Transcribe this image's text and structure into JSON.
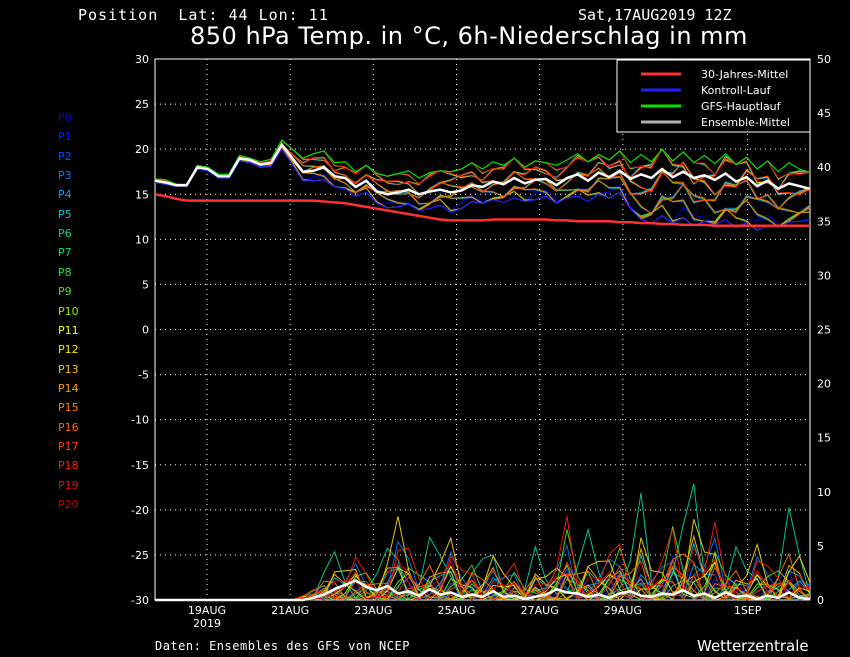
{
  "header": {
    "position_label": "Position",
    "lat_label": "Lat:",
    "lat": "44",
    "lon_label": "Lon:",
    "lon": "11",
    "datetime": "Sat,17AUG2019 12Z",
    "title": "850 hPa Temp. in °C, 6h-Niederschlag in mm"
  },
  "footer": {
    "source": "Daten: Ensembles des GFS von NCEP",
    "brand": "Wetterzentrale"
  },
  "members": [
    {
      "label": "P0",
      "color": "#0000ff"
    },
    {
      "label": "P1",
      "color": "#0028ff"
    },
    {
      "label": "P2",
      "color": "#0050ff"
    },
    {
      "label": "P3",
      "color": "#0078ff"
    },
    {
      "label": "P4",
      "color": "#00a0ff"
    },
    {
      "label": "P5",
      "color": "#00c8e0"
    },
    {
      "label": "P6",
      "color": "#00d8a0"
    },
    {
      "label": "P7",
      "color": "#00e070"
    },
    {
      "label": "P8",
      "color": "#20e040"
    },
    {
      "label": "P9",
      "color": "#50e020"
    },
    {
      "label": "P10",
      "color": "#90f000"
    },
    {
      "label": "P11",
      "color": "#ffff00"
    },
    {
      "label": "P12",
      "color": "#ffe000"
    },
    {
      "label": "P13",
      "color": "#ffc000"
    },
    {
      "label": "P14",
      "color": "#ffa000"
    },
    {
      "label": "P15",
      "color": "#ff8000"
    },
    {
      "label": "P16",
      "color": "#ff6000"
    },
    {
      "label": "P17",
      "color": "#ff4000"
    },
    {
      "label": "P18",
      "color": "#ff2000"
    },
    {
      "label": "P19",
      "color": "#e01000"
    },
    {
      "label": "P20",
      "color": "#c00000"
    }
  ],
  "chart_data": {
    "type": "line",
    "title": "850 hPa Temp. in °C, 6h-Niederschlag in mm",
    "x_ticks": [
      "19AUG",
      "21AUG",
      "23AUG",
      "25AUG",
      "27AUG",
      "29AUG",
      "1SEP"
    ],
    "x_tick_sub": [
      "2019",
      "",
      "",
      "",
      "",
      "",
      ""
    ],
    "x_range": [
      "2019-08-17 18Z",
      "2019-09-02 12Z"
    ],
    "y_left": {
      "ticks": [
        30,
        25,
        20,
        15,
        10,
        5,
        0,
        -5,
        -10,
        -15,
        -20,
        -25,
        -30
      ],
      "range": [
        -30,
        30
      ],
      "unit": "°C"
    },
    "y_right": {
      "ticks": [
        50,
        45,
        40,
        35,
        30,
        25,
        20,
        15,
        10,
        5,
        0
      ],
      "range": [
        0,
        50
      ],
      "unit": "mm"
    },
    "grid": true,
    "legend": {
      "position": "top-right",
      "entries": [
        {
          "name": "30-Jahres-Mittel",
          "color": "#ff3030"
        },
        {
          "name": "Kontroll-Lauf",
          "color": "#2020ff"
        },
        {
          "name": "GFS-Hauptlauf",
          "color": "#00e000"
        },
        {
          "name": "Ensemble-Mittel",
          "color": "#b0b0b0"
        }
      ]
    },
    "climatology_temp": [
      15.0,
      14.8,
      14.5,
      14.3,
      14.3,
      14.3,
      14.3,
      14.3,
      14.3,
      14.3,
      14.3,
      14.3,
      14.3,
      14.3,
      14.3,
      14.3,
      14.2,
      14.1,
      14.0,
      13.8,
      13.6,
      13.4,
      13.2,
      13.0,
      12.8,
      12.6,
      12.4,
      12.2,
      12.1,
      12.1,
      12.1,
      12.1,
      12.2,
      12.2,
      12.2,
      12.2,
      12.2,
      12.2,
      12.1,
      12.1,
      12.0,
      12.0,
      12.0,
      12.0,
      11.9,
      11.9,
      11.8,
      11.8,
      11.7,
      11.7,
      11.6,
      11.6,
      11.6,
      11.5,
      11.5,
      11.5,
      11.5,
      11.5,
      11.5,
      11.5,
      11.5,
      11.5,
      11.5
    ],
    "ensemble_mean_temp": [
      16.5,
      16.3,
      16.0,
      16.0,
      18.0,
      17.8,
      17.0,
      17.0,
      19.0,
      18.8,
      18.3,
      18.5,
      20.5,
      19.0,
      17.5,
      17.6,
      18.0,
      17.0,
      16.8,
      15.8,
      16.5,
      15.3,
      15.0,
      15.2,
      15.5,
      15.0,
      15.3,
      15.5,
      15.2,
      15.4,
      16.0,
      15.8,
      16.4,
      16.1,
      16.8,
      16.2,
      16.6,
      16.7,
      16.0,
      16.8,
      17.2,
      16.5,
      17.4,
      16.9,
      17.6,
      16.7,
      17.2,
      16.8,
      17.8,
      16.9,
      17.5,
      16.8,
      17.1,
      16.6,
      17.3,
      16.4,
      16.9,
      15.9,
      16.5,
      15.6,
      16.2,
      15.9,
      15.6
    ],
    "spread_upper_temp": [
      16.7,
      16.6,
      16.1,
      16.1,
      18.2,
      18.0,
      17.2,
      17.2,
      19.3,
      19.0,
      18.6,
      18.9,
      21.0,
      20.0,
      19.0,
      19.5,
      19.8,
      18.5,
      18.6,
      17.5,
      18.2,
      17.3,
      17.0,
      17.3,
      17.6,
      16.8,
      17.4,
      17.6,
      17.5,
      17.8,
      18.5,
      17.8,
      18.6,
      18.2,
      19.0,
      18.0,
      18.7,
      18.5,
      18.2,
      18.8,
      19.5,
      18.6,
      19.4,
      18.8,
      19.8,
      18.5,
      19.4,
      18.6,
      20.0,
      18.7,
      19.7,
      18.5,
      19.3,
      18.4,
      19.5,
      18.3,
      19.1,
      17.8,
      18.7,
      17.5,
      18.5,
      17.8,
      17.4
    ],
    "spread_lower_temp": [
      16.3,
      16.1,
      15.9,
      15.9,
      17.8,
      17.6,
      16.8,
      16.8,
      18.7,
      18.5,
      18.0,
      18.1,
      20.0,
      18.3,
      16.5,
      16.5,
      16.6,
      15.8,
      15.6,
      14.8,
      15.2,
      14.0,
      13.5,
      13.6,
      13.9,
      13.2,
      13.4,
      13.8,
      13.0,
      13.4,
      14.2,
      14.0,
      14.4,
      14.1,
      14.6,
      14.2,
      14.4,
      14.8,
      14.0,
      14.6,
      14.8,
      14.2,
      15.0,
      14.6,
      15.2,
      13.4,
      12.2,
      11.8,
      12.6,
      11.8,
      12.4,
      11.5,
      12.0,
      11.6,
      12.2,
      11.3,
      11.8,
      11.0,
      11.5,
      11.4,
      11.9,
      12.0,
      12.2
    ],
    "precip_ensemble_mean": [
      0,
      0,
      0,
      0,
      0,
      0,
      0,
      0,
      0,
      0,
      0,
      0,
      0,
      0,
      0,
      0.2,
      0.5,
      1.0,
      1.4,
      1.8,
      1.2,
      0.9,
      1.3,
      0.6,
      0.8,
      0.4,
      1.0,
      0.5,
      0.7,
      0.3,
      0.5,
      0.3,
      0.8,
      0.3,
      0.4,
      0.1,
      0.3,
      0.5,
      1.0,
      0.7,
      0.6,
      0.3,
      0.5,
      0.2,
      0.6,
      0.8,
      0.4,
      0.3,
      0.6,
      0.5,
      0.9,
      0.4,
      0.6,
      0.2,
      0.7,
      0.3,
      0.4,
      0.1,
      0.4,
      0.2,
      0.7,
      0.2,
      0.1
    ],
    "precip_spread_max": [
      0,
      0,
      0,
      0,
      0,
      0,
      0,
      0,
      0,
      0,
      0,
      0,
      0,
      0,
      0.5,
      1.5,
      3.5,
      4.5,
      3.0,
      5.0,
      4.2,
      3.0,
      5.0,
      8.7,
      6.0,
      4.0,
      6.5,
      4.5,
      6.7,
      3.5,
      6.0,
      4.0,
      5.0,
      3.0,
      4.5,
      2.0,
      5.0,
      2.5,
      4.0,
      11.0,
      5.0,
      6.5,
      4.0,
      5.5,
      8.0,
      5.0,
      10.0,
      3.0,
      4.5,
      11.5,
      8.5,
      11.2,
      5.0,
      9.0,
      4.0,
      5.5,
      3.0,
      6.0,
      4.0,
      5.0,
      9.0,
      5.0,
      2.0
    ],
    "precip_spread_mid": [
      0,
      0,
      0,
      0,
      0,
      0,
      0,
      0,
      0,
      0,
      0,
      0,
      0,
      0,
      0.2,
      0.8,
      2.0,
      2.5,
      1.8,
      3.2,
      2.5,
      1.8,
      3.0,
      4.0,
      3.5,
      2.0,
      3.5,
      2.5,
      4.0,
      2.0,
      3.0,
      2.0,
      3.0,
      1.5,
      2.5,
      1.0,
      3.0,
      1.5,
      2.5,
      5.0,
      3.0,
      3.5,
      2.0,
      3.0,
      4.5,
      3.0,
      5.0,
      1.5,
      2.5,
      5.5,
      4.5,
      6.0,
      3.0,
      5.0,
      2.0,
      3.0,
      1.5,
      3.0,
      2.0,
      2.5,
      4.5,
      2.5,
      1.0
    ]
  }
}
